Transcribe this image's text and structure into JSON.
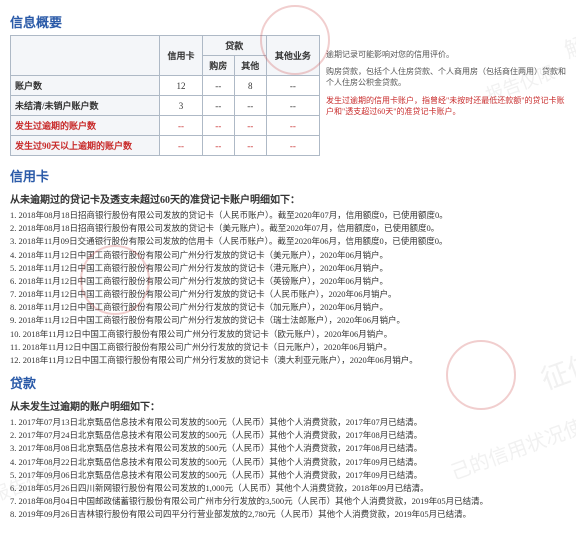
{
  "sections": {
    "info_summary_title": "信息概要",
    "credit_card_title": "信用卡",
    "loans_title": "贷款"
  },
  "summary_table": {
    "headers": {
      "blank": "",
      "credit_card": "信用卡",
      "loans": "贷款",
      "house": "购房",
      "other": "其他",
      "other_business": "其他业务"
    },
    "rows": [
      {
        "label": "账户数",
        "cc": "12",
        "house": "--",
        "other": "8",
        "biz": "--",
        "red": false
      },
      {
        "label": "未结清/未销户账户数",
        "cc": "3",
        "house": "--",
        "other": "--",
        "biz": "--",
        "red": false
      },
      {
        "label": "发生过逾期的账户数",
        "cc": "--",
        "house": "--",
        "other": "--",
        "biz": "--",
        "red": true
      },
      {
        "label": "发生过90天以上逾期的账户数",
        "cc": "--",
        "house": "--",
        "other": "--",
        "biz": "--",
        "red": true
      }
    ],
    "side_notes": {
      "top": "逾期记录可能影响对您的信用评价。",
      "mid": "购房贷款，包括个人住房贷款、个人商用房（包括商住两用）贷款和个人住房公积金贷款。",
      "bottom": "发生过逾期的信用卡账户，指曾经\"未按时还最低还款额\"的贷记卡账户和\"透支超过60天\"的准贷记卡账户。"
    }
  },
  "cc_section": {
    "subtitle": "从未逾期过的贷记卡及透支未超过60天的准贷记卡账户明细如下：",
    "items": [
      "1. 2018年08月18日招商银行股份有限公司发放的贷记卡（人民币账户）。截至2020年07月，信用额度0，已使用额度0。",
      "2. 2018年08月18日招商银行股份有限公司发放的贷记卡（美元账户）。截至2020年07月，信用额度0，已使用额度0。",
      "3. 2018年11月09日交通银行股份有限公司发放的信用卡（人民币账户）。截至2020年06月，信用额度0，已使用额度0。",
      "4. 2018年11月12日中国工商银行股份有限公司广州分行发放的贷记卡（美元账户），2020年06月销户。",
      "5. 2018年11月12日中国工商银行股份有限公司广州分行发放的贷记卡（港元账户），2020年06月销户。",
      "6. 2018年11月12日中国工商银行股份有限公司广州分行发放的贷记卡（英镑账户），2020年06月销户。",
      "7. 2018年11月12日中国工商银行股份有限公司广州分行发放的贷记卡（人民币账户），2020年06月销户。",
      "8. 2018年11月12日中国工商银行股份有限公司广州分行发放的贷记卡（加元账户），2020年06月销户。",
      "9. 2018年11月12日中国工商银行股份有限公司广州分行发放的贷记卡（瑞士法郎账户），2020年06月销户。",
      "10. 2018年11月12日中国工商银行股份有限公司广州分行发放的贷记卡（欧元账户），2020年06月销户。",
      "11. 2018年11月12日中国工商银行股份有限公司广州分行发放的贷记卡（日元账户），2020年06月销户。",
      "12. 2018年11月12日中国工商银行股份有限公司广州分行发放的贷记卡（澳大利亚元账户），2020年06月销户。"
    ]
  },
  "loan_section": {
    "subtitle": "从未发生过逾期的账户明细如下：",
    "items": [
      "1. 2017年07月13日北京甄岳信息技术有限公司发放的500元（人民币）其他个人消费贷款，2017年07月已结清。",
      "2. 2017年07月24日北京甄岳信息技术有限公司发放的500元（人民币）其他个人消费贷款，2017年08月已结清。",
      "3. 2017年08月08日北京甄岳信息技术有限公司发放的500元（人民币）其他个人消费贷款，2017年08月已结清。",
      "4. 2017年08月22日北京甄岳信息技术有限公司发放的500元（人民币）其他个人消费贷款，2017年09月已结清。",
      "5. 2017年09月06日北京甄岳信息技术有限公司发放的500元（人民币）其他个人消费贷款，2017年09月已结清。",
      "6. 2018年05月26日四川新网银行股份有限公司发放的1,000元（人民币）其他个人消费贷款，2018年09月已结清。",
      "7. 2018年08月04日中国邮政储蓄银行股份有限公司广州市分行发放的3,500元（人民币）其他个人消费贷款，2019年05月已结清。",
      "8. 2019年09月26日吉林银行股份有限公司四平分行营业部发放的2,780元（人民币）其他个人消费贷款，2019年05月已结清。"
    ]
  },
  "watermarks": {
    "w1": "报告仅限",
    "w2": "己的信用状况使用",
    "w3": "征信",
    "w4": "解"
  },
  "colors": {
    "title": "#2a5aa8",
    "red": "#c82b2b",
    "border": "#aeb9c6"
  }
}
